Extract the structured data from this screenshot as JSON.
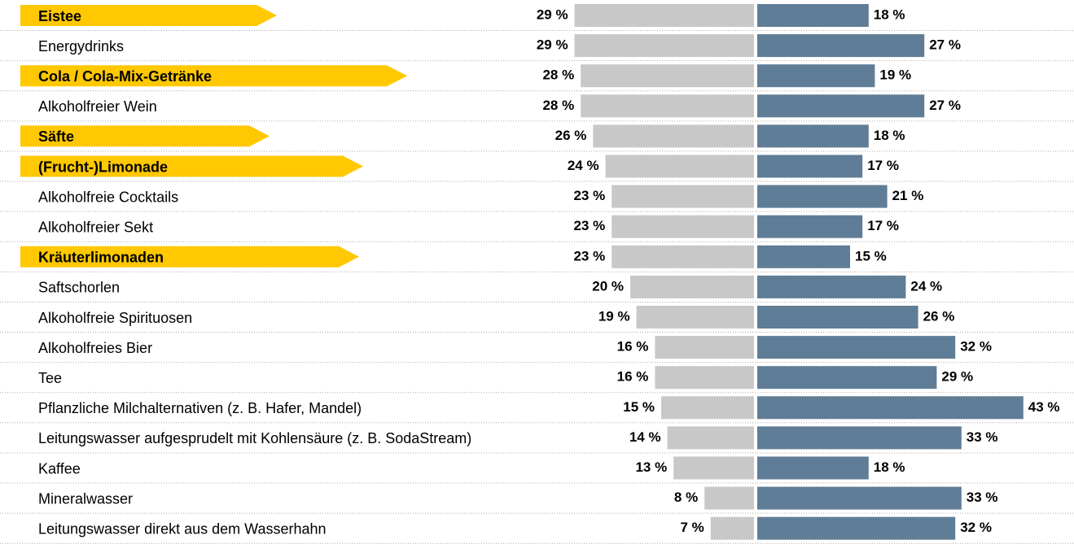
{
  "chart_data": {
    "type": "butterfly",
    "categories": [
      "Eistee",
      "Energydrinks",
      "Cola / Cola-Mix-Getränke",
      "Alkoholfreier Wein",
      "Säfte",
      "(Frucht-)Limonade",
      "Alkoholfreie Cocktails",
      "Alkoholfreier Sekt",
      "Kräuterlimonaden",
      "Saftschorlen",
      "Alkoholfreie Spirituosen",
      "Alkoholfreies Bier",
      "Tee",
      "Pflanzliche Milchalternativen (z. B. Hafer, Mandel)",
      "Leitungswasser aufgesprudelt mit Kohlensäure (z. B. SodaStream)",
      "Kaffee",
      "Mineralwasser",
      "Leitungswasser direkt aus dem Wasserhahn"
    ],
    "highlight": [
      true,
      false,
      true,
      false,
      true,
      true,
      false,
      false,
      true,
      false,
      false,
      false,
      false,
      false,
      false,
      false,
      false,
      false
    ],
    "highlight_color": "#ffc800",
    "series": [
      {
        "color": "#c8c8c8",
        "side": "left",
        "values": [
          29,
          29,
          28,
          28,
          26,
          24,
          23,
          23,
          23,
          20,
          19,
          16,
          16,
          15,
          14,
          13,
          8,
          7
        ],
        "value_labels": [
          "29 %",
          "29 %",
          "28 %",
          "28 %",
          "26 %",
          "24 %",
          "23 %",
          "23 %",
          "23 %",
          "20 %",
          "19 %",
          "16 %",
          "16 %",
          "15 %",
          "14 %",
          "13 %",
          "8 %",
          "7 %"
        ]
      },
      {
        "color": "#5f7d96",
        "side": "right",
        "values": [
          18,
          27,
          19,
          27,
          18,
          17,
          21,
          17,
          15,
          24,
          26,
          32,
          29,
          43,
          33,
          18,
          33,
          32
        ],
        "value_labels": [
          "18 %",
          "27 %",
          "19 %",
          "27 %",
          "18 %",
          "17 %",
          "21 %",
          "17 %",
          "15 %",
          "24 %",
          "26 %",
          "32 %",
          "29 %",
          "43 %",
          "33 %",
          "18 %",
          "33 %",
          "32 %"
        ]
      }
    ]
  }
}
